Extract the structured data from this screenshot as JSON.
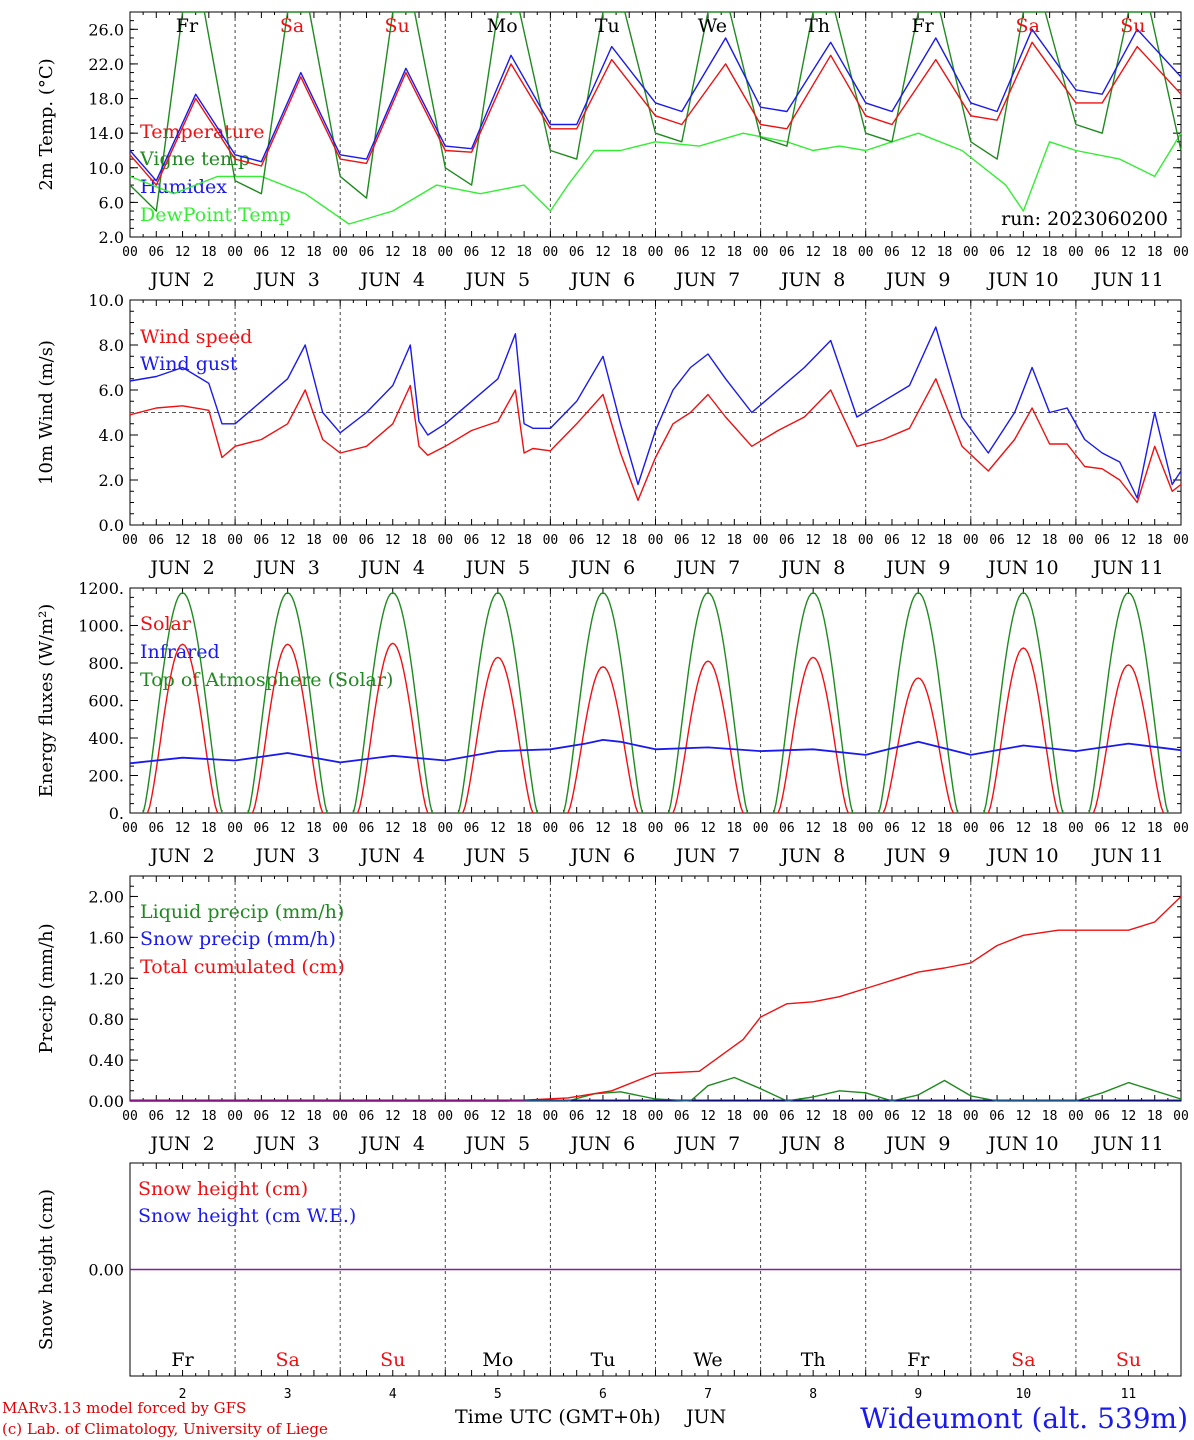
{
  "run_label": "run: 2023060200",
  "footer": {
    "model": "MARv3.13 model forced by GFS",
    "lab": "(c) Lab. of Climatology, University of Liege",
    "station": "Wideumont (alt. 539m)",
    "x_title": "Time UTC (GMT+0h)",
    "x_month": "JUN"
  },
  "days": [
    {
      "abbr": "Fr",
      "num": "2",
      "weekend": false
    },
    {
      "abbr": "Sa",
      "num": "3",
      "weekend": true
    },
    {
      "abbr": "Su",
      "num": "4",
      "weekend": true
    },
    {
      "abbr": "Mo",
      "num": "5",
      "weekend": false
    },
    {
      "abbr": "Tu",
      "num": "6",
      "weekend": false
    },
    {
      "abbr": "We",
      "num": "7",
      "weekend": false
    },
    {
      "abbr": "Th",
      "num": "8",
      "weekend": false
    },
    {
      "abbr": "Fr",
      "num": "9",
      "weekend": false
    },
    {
      "abbr": "Sa",
      "num": "10",
      "weekend": true
    },
    {
      "abbr": "Su",
      "num": "11",
      "weekend": true
    }
  ],
  "hour_ticks": [
    "00",
    "06",
    "12",
    "18"
  ],
  "date_labels": [
    "JUN  2",
    "JUN  3",
    "JUN  4",
    "JUN  5",
    "JUN  6",
    "JUN  7",
    "JUN  8",
    "JUN  9",
    "JUN 10",
    "JUN 11"
  ],
  "colors": {
    "red": "#ee1111",
    "green": "#1f8a1f",
    "blue": "#1a1aee",
    "lightgreen": "#33ee33",
    "purple": "#8a1aa0",
    "grid": "#555555"
  },
  "chart_data": [
    {
      "id": "temp",
      "type": "line",
      "ylabel": "2m Temp. (°C)",
      "ylim": [
        2,
        28
      ],
      "yticks": [
        "2.0",
        "6.0",
        "10.0",
        "14.0",
        "18.0",
        "22.0",
        "26.0"
      ],
      "grid": "vertical dashed at midnight",
      "legend": [
        {
          "label": "Temperature",
          "color": "red"
        },
        {
          "label": "Vigne temp",
          "color": "green"
        },
        {
          "label": "Humidex",
          "color": "blue"
        },
        {
          "label": "DewPoint Temp",
          "color": "lightgreen"
        }
      ],
      "x_hours": [
        0,
        15,
        40,
        65,
        88,
        111,
        136,
        160,
        184,
        208,
        232
      ],
      "series": [
        {
          "name": "Temperature",
          "color": "red",
          "x": [
            0,
            6,
            15,
            24,
            30,
            39,
            48,
            54,
            63,
            72,
            78,
            87,
            96,
            102,
            110,
            120,
            126,
            136,
            144,
            150,
            160,
            168,
            174,
            184,
            192,
            198,
            206,
            216,
            222,
            230,
            240
          ],
          "y": [
            11.5,
            8,
            18,
            11,
            10.2,
            20.5,
            11,
            10.5,
            21,
            12,
            11.8,
            22,
            14.5,
            14.5,
            22.5,
            16,
            15,
            22,
            15,
            14.5,
            23,
            16,
            15,
            22.5,
            16,
            15.5,
            24.5,
            17.5,
            17.5,
            24,
            18.5
          ]
        },
        {
          "name": "Vigne temp",
          "color": "green",
          "x": [
            0,
            6,
            12,
            17,
            24,
            30,
            36,
            41,
            48,
            54,
            60,
            65,
            72,
            78,
            84,
            89,
            96,
            102,
            108,
            113,
            120,
            126,
            132,
            137,
            144,
            150,
            156,
            161,
            168,
            174,
            180,
            185,
            192,
            198,
            204,
            209,
            216,
            222,
            228,
            233,
            240
          ],
          "y": [
            8,
            5,
            28,
            28,
            8.5,
            7,
            28,
            28,
            9,
            6.5,
            28,
            28,
            10,
            8,
            28,
            28,
            12,
            11,
            28,
            28,
            14,
            13,
            28,
            28,
            13.5,
            12.5,
            28,
            28,
            14,
            13,
            28,
            28,
            13,
            11,
            28,
            28,
            15,
            14,
            28,
            28,
            12
          ]
        },
        {
          "name": "Humidex",
          "color": "blue",
          "x": [
            0,
            6,
            15,
            24,
            30,
            39,
            48,
            54,
            63,
            72,
            78,
            87,
            96,
            102,
            110,
            120,
            126,
            136,
            144,
            150,
            160,
            168,
            174,
            184,
            192,
            198,
            206,
            216,
            222,
            230,
            240
          ],
          "y": [
            12,
            8.5,
            18.5,
            11.5,
            10.7,
            21,
            11.5,
            11,
            21.5,
            12.5,
            12.2,
            23,
            15,
            15,
            24,
            17.5,
            16.5,
            25,
            17,
            16.5,
            24.5,
            17.5,
            16.5,
            25,
            17.5,
            16.5,
            26,
            19,
            18.5,
            26,
            20.5
          ]
        },
        {
          "name": "DewPoint Temp",
          "color": "lightgreen",
          "x": [
            0,
            10,
            20,
            30,
            40,
            50,
            60,
            70,
            80,
            90,
            96,
            100,
            106,
            112,
            120,
            130,
            140,
            150,
            156,
            162,
            168,
            174,
            180,
            190,
            200,
            204,
            210,
            216,
            226,
            234,
            240
          ],
          "y": [
            9,
            7,
            9,
            9,
            7,
            3.5,
            5,
            8,
            7,
            8,
            5,
            8,
            12,
            12,
            13,
            12.5,
            14,
            13,
            12,
            12.5,
            12,
            13,
            14,
            12,
            8,
            5,
            13,
            12,
            11,
            9,
            14
          ]
        }
      ]
    },
    {
      "id": "wind",
      "type": "line",
      "ylabel": "10m Wind (m/s)",
      "ylim": [
        0,
        10
      ],
      "yticks": [
        "0.0",
        "2.0",
        "4.0",
        "6.0",
        "8.0",
        "10.0"
      ],
      "reference_line": 5,
      "legend": [
        {
          "label": "Wind speed",
          "color": "red"
        },
        {
          "label": "Wind gust",
          "color": "blue"
        }
      ],
      "series": [
        {
          "name": "Wind speed",
          "color": "red",
          "x": [
            0,
            6,
            12,
            18,
            21,
            24,
            30,
            36,
            40,
            44,
            48,
            54,
            60,
            64,
            66,
            68,
            72,
            78,
            84,
            88,
            90,
            92,
            96,
            102,
            108,
            112,
            116,
            120,
            124,
            128,
            132,
            136,
            142,
            148,
            154,
            160,
            166,
            172,
            178,
            184,
            190,
            196,
            202,
            206,
            210,
            214,
            218,
            222,
            226,
            230,
            234,
            238,
            240
          ],
          "y": [
            4.9,
            5.2,
            5.3,
            5.1,
            3,
            3.5,
            3.8,
            4.5,
            6,
            3.8,
            3.2,
            3.5,
            4.5,
            6.2,
            3.5,
            3.1,
            3.5,
            4.2,
            4.6,
            6,
            3.2,
            3.4,
            3.3,
            4.5,
            5.8,
            3.2,
            1.1,
            3,
            4.5,
            5,
            5.8,
            4.8,
            3.5,
            4.2,
            4.8,
            6,
            3.5,
            3.8,
            4.3,
            6.5,
            3.5,
            2.4,
            3.8,
            5.2,
            3.6,
            3.6,
            2.6,
            2.5,
            2.0,
            1.0,
            3.5,
            1.5,
            1.8
          ]
        },
        {
          "name": "Wind gust",
          "color": "blue",
          "x": [
            0,
            6,
            12,
            18,
            21,
            24,
            30,
            36,
            40,
            44,
            48,
            54,
            60,
            64,
            66,
            68,
            72,
            78,
            84,
            88,
            90,
            92,
            96,
            102,
            108,
            112,
            116,
            120,
            124,
            128,
            132,
            136,
            142,
            148,
            154,
            160,
            166,
            172,
            178,
            184,
            190,
            196,
            202,
            206,
            210,
            214,
            218,
            222,
            226,
            230,
            234,
            238,
            240
          ],
          "y": [
            6.4,
            6.6,
            7,
            6.3,
            4.5,
            4.5,
            5.5,
            6.5,
            8,
            5,
            4.1,
            5,
            6.2,
            8,
            4.6,
            4.0,
            4.5,
            5.5,
            6.5,
            8.5,
            4.5,
            4.3,
            4.3,
            5.5,
            7.5,
            4.5,
            1.8,
            4.2,
            6,
            7,
            7.6,
            6.5,
            5,
            6,
            7,
            8.2,
            4.8,
            5.5,
            6.2,
            8.8,
            4.8,
            3.2,
            5,
            7,
            5,
            5.2,
            3.8,
            3.2,
            2.8,
            1.2,
            5,
            1.8,
            2.4
          ]
        }
      ]
    },
    {
      "id": "flux",
      "type": "line",
      "ylabel": "Energy fluxes (W/m²)",
      "ylim": [
        0,
        1200
      ],
      "yticks": [
        "0.",
        "200.",
        "400.",
        "600.",
        "800.",
        "1000.",
        "1200."
      ],
      "legend": [
        {
          "label": "Solar",
          "color": "red"
        },
        {
          "label": "Infrared",
          "color": "blue"
        },
        {
          "label": "Top of Atmosphere (Solar)",
          "color": "green"
        }
      ],
      "solar_peak": [
        900,
        900,
        905,
        830,
        780,
        810,
        830,
        720,
        880,
        790
      ],
      "toa_peak": 1175,
      "infrared": {
        "x": [
          0,
          12,
          24,
          36,
          48,
          60,
          72,
          84,
          96,
          104,
          108,
          112,
          120,
          132,
          144,
          156,
          168,
          180,
          192,
          204,
          216,
          228,
          240
        ],
        "y": [
          265,
          295,
          280,
          320,
          270,
          305,
          280,
          330,
          340,
          370,
          390,
          380,
          340,
          350,
          330,
          340,
          310,
          380,
          310,
          360,
          330,
          370,
          335
        ]
      }
    },
    {
      "id": "precip",
      "type": "line",
      "ylabel": "Precip (mm/h)",
      "ylim": [
        0,
        2.2
      ],
      "yticks": [
        "0.00",
        "0.40",
        "0.80",
        "1.20",
        "1.60",
        "2.00"
      ],
      "legend": [
        {
          "label": "Liquid precip (mm/h)",
          "color": "green"
        },
        {
          "label": "Snow precip (mm/h)",
          "color": "blue"
        },
        {
          "label": "Total cumulated (cm)",
          "color": "red"
        }
      ],
      "series": [
        {
          "name": "Total cumulated (cm)",
          "color": "red",
          "x": [
            0,
            86,
            100,
            110,
            120,
            130,
            140,
            144,
            150,
            156,
            162,
            168,
            174,
            180,
            186,
            192,
            198,
            204,
            212,
            216,
            220,
            228,
            234,
            240
          ],
          "y": [
            0,
            0,
            0.03,
            0.1,
            0.27,
            0.29,
            0.6,
            0.82,
            0.95,
            0.97,
            1.02,
            1.1,
            1.18,
            1.26,
            1.3,
            1.35,
            1.52,
            1.62,
            1.67,
            1.67,
            1.67,
            1.67,
            1.75,
            2.0
          ]
        },
        {
          "name": "Liquid precip (mm/h)",
          "color": "green",
          "x": [
            0,
            100,
            106,
            112,
            120,
            128,
            132,
            138,
            144,
            150,
            156,
            162,
            168,
            174,
            180,
            186,
            192,
            198,
            206,
            216,
            222,
            228,
            234,
            240
          ],
          "y": [
            0,
            0,
            0.07,
            0.09,
            0.02,
            0,
            0.15,
            0.23,
            0.12,
            0,
            0.04,
            0.1,
            0.08,
            0,
            0.06,
            0.2,
            0.05,
            0,
            0,
            0,
            0.08,
            0.18,
            0.1,
            0.02
          ]
        }
      ]
    },
    {
      "id": "snow",
      "type": "line",
      "ylabel": "Snow height (cm)",
      "ylim": [
        -1,
        1
      ],
      "yticks": [
        "0.00"
      ],
      "legend": [
        {
          "label": "Snow height (cm)",
          "color": "red"
        },
        {
          "label": "Snow height (cm W.E.)",
          "color": "blue"
        }
      ],
      "series": [
        {
          "name": "Snow height",
          "color": "purple",
          "x": [
            0,
            240
          ],
          "y": [
            0,
            0
          ]
        }
      ]
    }
  ]
}
